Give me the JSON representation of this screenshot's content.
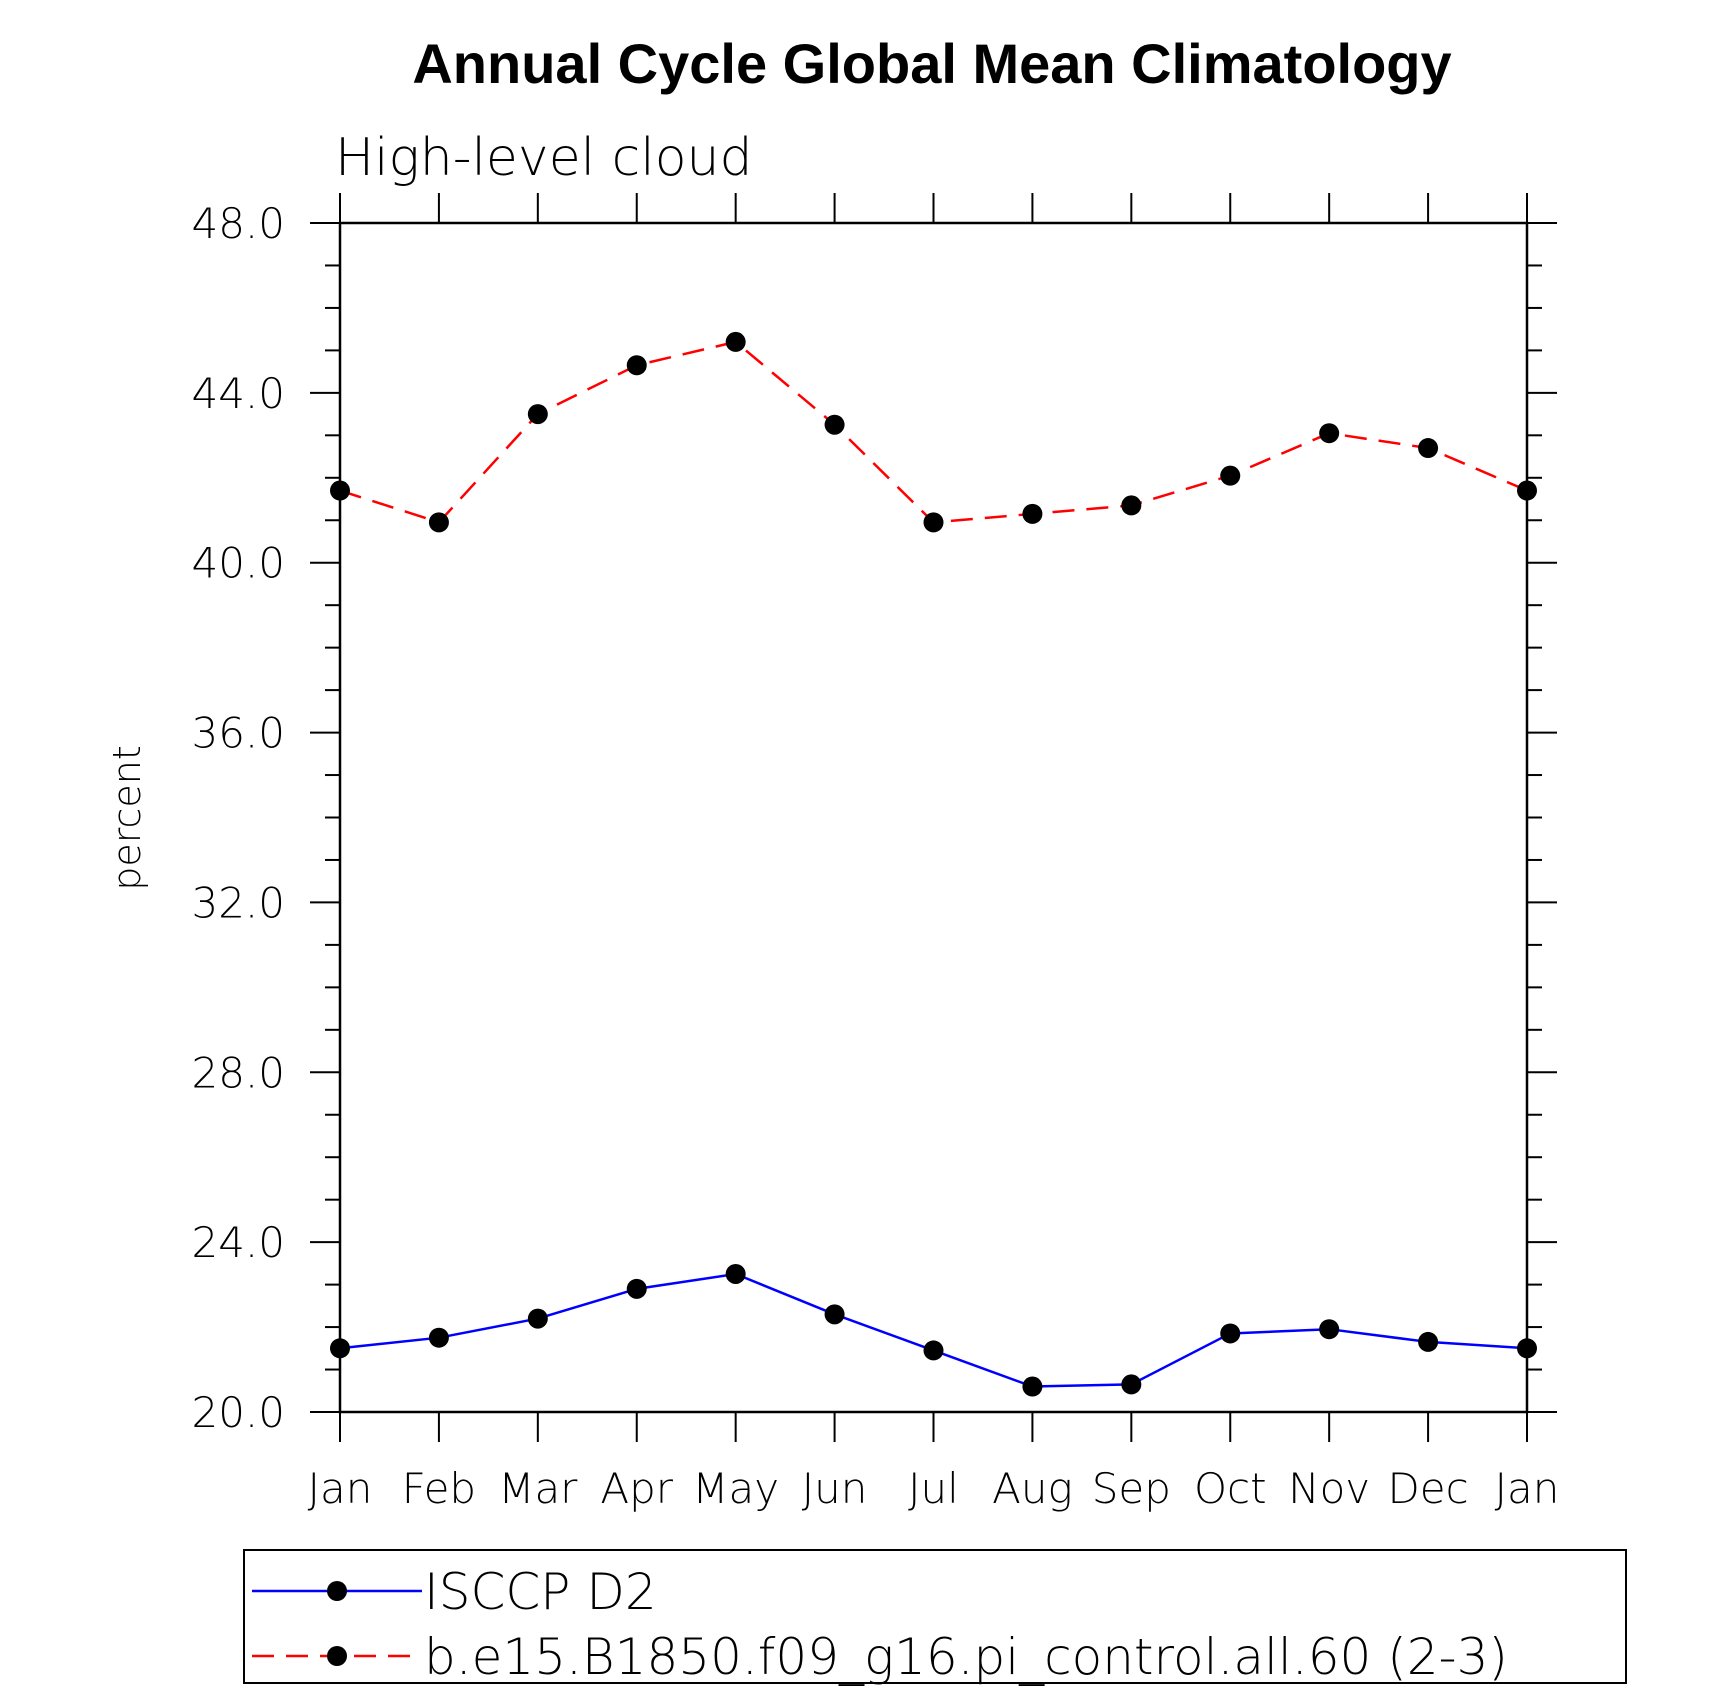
{
  "chart_data": {
    "type": "line",
    "title": "Annual Cycle Global Mean Climatology",
    "subtitle": "High-level cloud",
    "ylabel": "percent",
    "xlabel": "",
    "categories": [
      "Jan",
      "Feb",
      "Mar",
      "Apr",
      "May",
      "Jun",
      "Jul",
      "Aug",
      "Sep",
      "Oct",
      "Nov",
      "Dec",
      "Jan"
    ],
    "ylim": [
      20.0,
      48.0
    ],
    "yticks": [
      "20.0",
      "24.0",
      "28.0",
      "32.0",
      "36.0",
      "40.0",
      "44.0",
      "48.0"
    ],
    "series": [
      {
        "name": "ISCCP D2",
        "color": "#0000ff",
        "style": "solid",
        "marker": "filled-circle",
        "values": [
          21.5,
          21.75,
          22.2,
          22.9,
          23.25,
          22.3,
          21.45,
          20.6,
          20.65,
          21.85,
          21.95,
          21.65,
          21.5
        ]
      },
      {
        "name": "b.e15.B1850.f09_g16.pi_control.all.60 (2-3)",
        "color": "#ff0000",
        "style": "dashed",
        "marker": "filled-circle",
        "values": [
          41.7,
          40.95,
          43.5,
          44.65,
          45.2,
          43.25,
          40.95,
          41.15,
          41.35,
          42.05,
          43.05,
          42.7,
          41.7
        ]
      }
    ],
    "grid": false,
    "legend_position": "bottom"
  }
}
